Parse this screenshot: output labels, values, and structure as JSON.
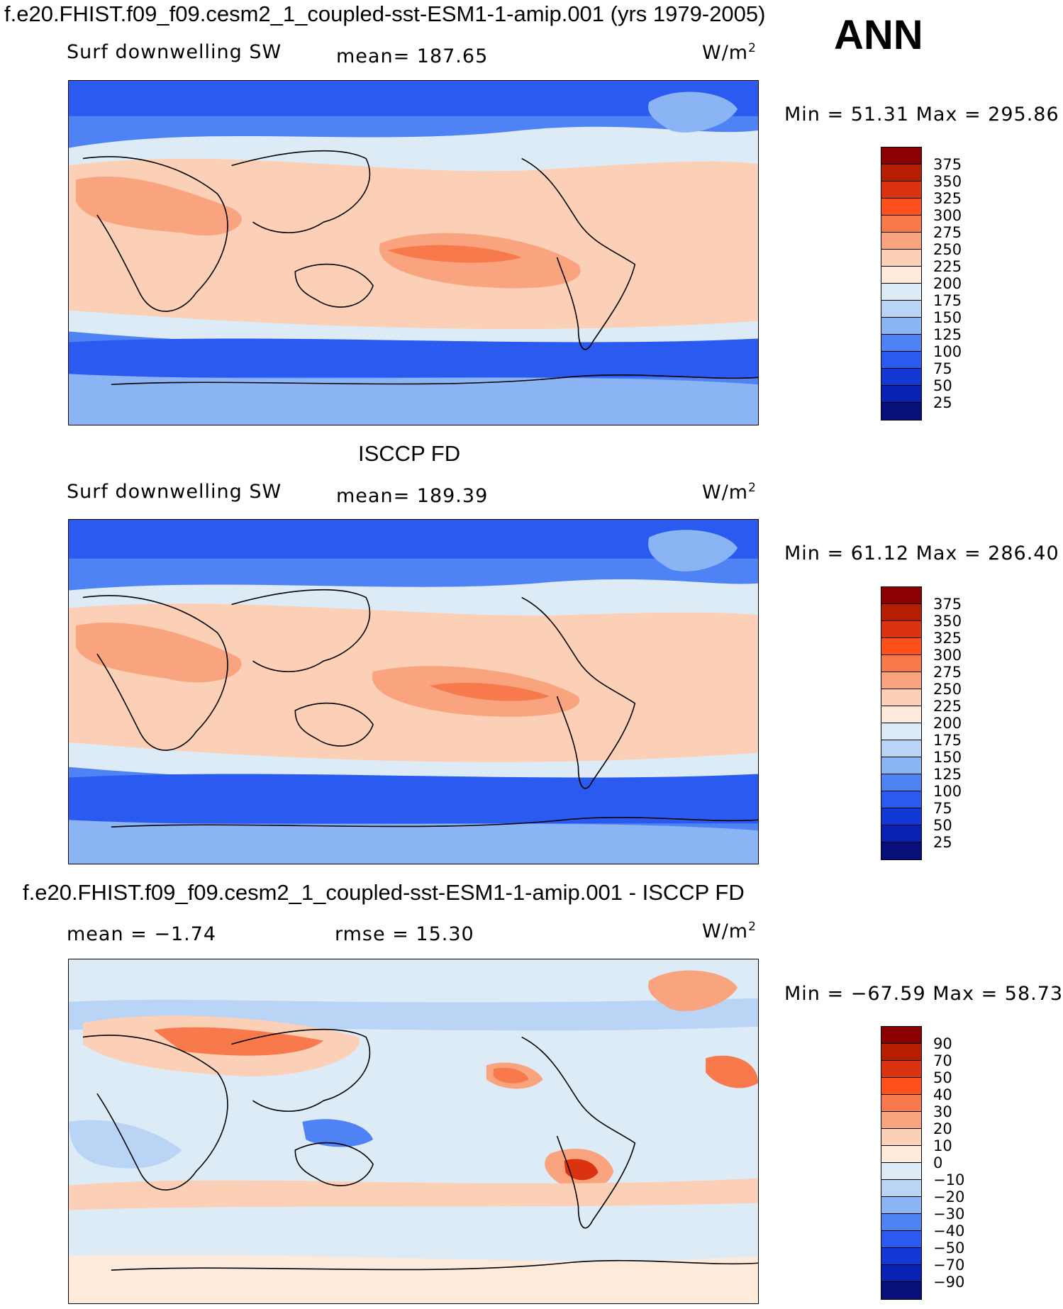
{
  "season": "ANN",
  "chart_data": [
    {
      "type": "heatmap",
      "title": "f.e20.FHIST.f09_f09.cesm2_1_coupled-sst-ESM1-1-amip.001 (yrs 1979-2005)",
      "variable": "Surf downwelling SW",
      "stat_text": "mean=  187.65",
      "units_base": "W/m",
      "units_exp": "2",
      "minmax_text": "Min =   51.31  Max  =  295.86",
      "mean": 187.65,
      "min": 51.31,
      "max": 295.86,
      "colorbar": {
        "labels": [
          "375",
          "350",
          "325",
          "300",
          "275",
          "250",
          "225",
          "200",
          "175",
          "150",
          "125",
          "100",
          "75",
          "50",
          "25"
        ],
        "colors": [
          "#8b0000",
          "#b51e00",
          "#db3210",
          "#ff4f1a",
          "#f7794c",
          "#f9a37f",
          "#fcd0b6",
          "#fdeadb",
          "#ddebf7",
          "#b9d4f5",
          "#8ab4f4",
          "#4f83f5",
          "#2a5af0",
          "#1238d6",
          "#0a22b4",
          "#07107a"
        ]
      }
    },
    {
      "type": "heatmap",
      "title": "ISCCP FD",
      "variable": "Surf downwelling SW",
      "stat_text": "mean=  189.39",
      "units_base": "W/m",
      "units_exp": "2",
      "minmax_text": "Min =   61.12  Max  =  286.40",
      "mean": 189.39,
      "min": 61.12,
      "max": 286.4,
      "colorbar": {
        "labels": [
          "375",
          "350",
          "325",
          "300",
          "275",
          "250",
          "225",
          "200",
          "175",
          "150",
          "125",
          "100",
          "75",
          "50",
          "25"
        ],
        "colors": [
          "#8b0000",
          "#b51e00",
          "#db3210",
          "#ff4f1a",
          "#f7794c",
          "#f9a37f",
          "#fcd0b6",
          "#fdeadb",
          "#ddebf7",
          "#b9d4f5",
          "#8ab4f4",
          "#4f83f5",
          "#2a5af0",
          "#1238d6",
          "#0a22b4",
          "#07107a"
        ]
      }
    },
    {
      "type": "heatmap",
      "title": "f.e20.FHIST.f09_f09.cesm2_1_coupled-sst-ESM1-1-amip.001 - ISCCP FD",
      "variable_text": "mean =    −1.74",
      "stat_text": "rmse  =    15.30",
      "units_base": "W/m",
      "units_exp": "2",
      "minmax_text": "Min  = −67.59  Max  =    58.73",
      "mean": -1.74,
      "rmse": 15.3,
      "min": -67.59,
      "max": 58.73,
      "colorbar": {
        "labels": [
          "90",
          "70",
          "50",
          "40",
          "30",
          "20",
          "10",
          "0",
          "−10",
          "−20",
          "−30",
          "−40",
          "−50",
          "−70",
          "−90"
        ],
        "colors": [
          "#8b0000",
          "#b51e00",
          "#db3210",
          "#ff4f1a",
          "#f7794c",
          "#f9a37f",
          "#fcd0b6",
          "#fdeadb",
          "#ddebf7",
          "#b9d4f5",
          "#8ab4f4",
          "#4f83f5",
          "#2a5af0",
          "#1238d6",
          "#0a22b4",
          "#07107a"
        ]
      }
    }
  ]
}
